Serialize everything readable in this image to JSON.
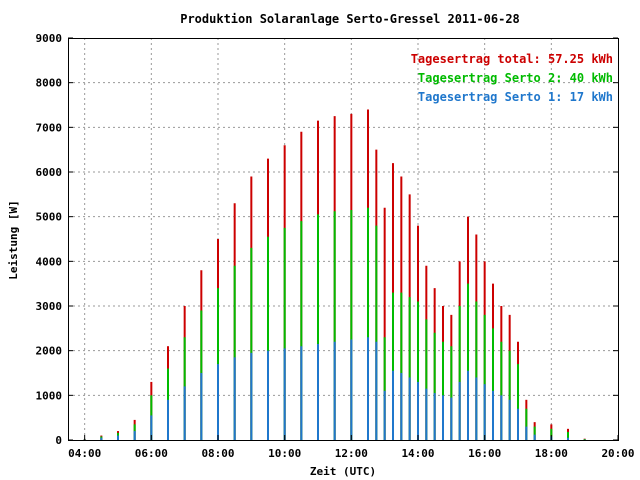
{
  "chart_data": {
    "type": "bar",
    "title": "Produktion Solaranlage Serto-Gressel 2011-06-28",
    "xlabel": "Zeit (UTC)",
    "ylabel": "Leistung [W]",
    "xlim": [
      3.5,
      20.0
    ],
    "ylim": [
      0,
      9000
    ],
    "x_ticks": [
      {
        "v": 4,
        "label": "04:00"
      },
      {
        "v": 6,
        "label": "06:00"
      },
      {
        "v": 8,
        "label": "08:00"
      },
      {
        "v": 10,
        "label": "10:00"
      },
      {
        "v": 12,
        "label": "12:00"
      },
      {
        "v": 14,
        "label": "14:00"
      },
      {
        "v": 16,
        "label": "16:00"
      },
      {
        "v": 18,
        "label": "18:00"
      },
      {
        "v": 20,
        "label": "20:00"
      }
    ],
    "y_ticks": [
      {
        "v": 0,
        "label": "0"
      },
      {
        "v": 1000,
        "label": "1000"
      },
      {
        "v": 2000,
        "label": "2000"
      },
      {
        "v": 3000,
        "label": "3000"
      },
      {
        "v": 4000,
        "label": "4000"
      },
      {
        "v": 5000,
        "label": "5000"
      },
      {
        "v": 6000,
        "label": "6000"
      },
      {
        "v": 7000,
        "label": "7000"
      },
      {
        "v": 8000,
        "label": "8000"
      },
      {
        "v": 9000,
        "label": "9000"
      }
    ],
    "grid": true,
    "legend_position": "top-right",
    "series": [
      {
        "key": "total",
        "name": "Tagesertrag total: 57.25 kWh",
        "color": "#cc0000",
        "x": [
          4.0,
          4.5,
          5.0,
          5.5,
          6.0,
          6.5,
          7.0,
          7.5,
          8.0,
          8.5,
          9.0,
          9.5,
          10.0,
          10.5,
          11.0,
          11.5,
          12.0,
          12.5,
          12.75,
          13.0,
          13.25,
          13.5,
          13.75,
          14.0,
          14.25,
          14.5,
          14.75,
          15.0,
          15.25,
          15.5,
          15.75,
          16.0,
          16.25,
          16.5,
          16.75,
          17.0,
          17.25,
          17.5,
          18.0,
          18.5,
          19.0
        ],
        "values": [
          20,
          100,
          200,
          450,
          1300,
          2100,
          3000,
          3800,
          4500,
          5300,
          5900,
          6300,
          6600,
          6900,
          7150,
          7250,
          7300,
          7400,
          6500,
          5200,
          6200,
          5900,
          5500,
          4800,
          3900,
          3400,
          3000,
          2800,
          4000,
          5000,
          4600,
          4000,
          3500,
          3000,
          2800,
          2200,
          900,
          400,
          350,
          250,
          30
        ]
      },
      {
        "key": "serto2",
        "name": "Tagesertrag Serto 2: 40 kWh",
        "color": "#00bb00",
        "x": [
          4.0,
          4.5,
          5.0,
          5.5,
          6.0,
          6.5,
          7.0,
          7.5,
          8.0,
          8.5,
          9.0,
          9.5,
          10.0,
          10.5,
          11.0,
          11.5,
          12.0,
          12.5,
          12.75,
          13.0,
          13.25,
          13.5,
          13.75,
          14.0,
          14.25,
          14.5,
          14.75,
          15.0,
          15.25,
          15.5,
          15.75,
          16.0,
          16.25,
          16.5,
          16.75,
          17.0,
          17.25,
          17.5,
          18.0,
          18.5,
          19.0
        ],
        "values": [
          15,
          80,
          160,
          350,
          1000,
          1600,
          2300,
          2900,
          3400,
          3900,
          4300,
          4550,
          4750,
          4900,
          5050,
          5120,
          5150,
          5200,
          4800,
          2300,
          3300,
          3300,
          3200,
          3100,
          2700,
          2400,
          2200,
          2100,
          3000,
          3500,
          3100,
          2800,
          2500,
          2200,
          2000,
          1700,
          700,
          300,
          250,
          180,
          20
        ]
      },
      {
        "key": "serto1",
        "name": "Tagesertrag Serto 1: 17 kWh",
        "color": "#1f77cc",
        "x": [
          4.0,
          4.5,
          5.0,
          5.5,
          6.0,
          6.5,
          7.0,
          7.5,
          8.0,
          8.5,
          9.0,
          9.5,
          10.0,
          10.5,
          11.0,
          11.5,
          12.0,
          12.5,
          12.75,
          13.0,
          13.25,
          13.5,
          13.75,
          14.0,
          14.25,
          14.5,
          14.75,
          15.0,
          15.25,
          15.5,
          15.75,
          16.0,
          16.25,
          16.5,
          16.75,
          17.0,
          17.25,
          17.5,
          18.0,
          18.5,
          19.0
        ],
        "values": [
          10,
          50,
          100,
          200,
          550,
          900,
          1200,
          1500,
          1700,
          1850,
          1950,
          2000,
          2050,
          2100,
          2150,
          2200,
          2250,
          2300,
          2200,
          1100,
          1550,
          1500,
          1400,
          1300,
          1150,
          1050,
          1000,
          950,
          1300,
          1550,
          1400,
          1250,
          1100,
          1000,
          900,
          700,
          300,
          120,
          80,
          50,
          5
        ]
      }
    ]
  }
}
